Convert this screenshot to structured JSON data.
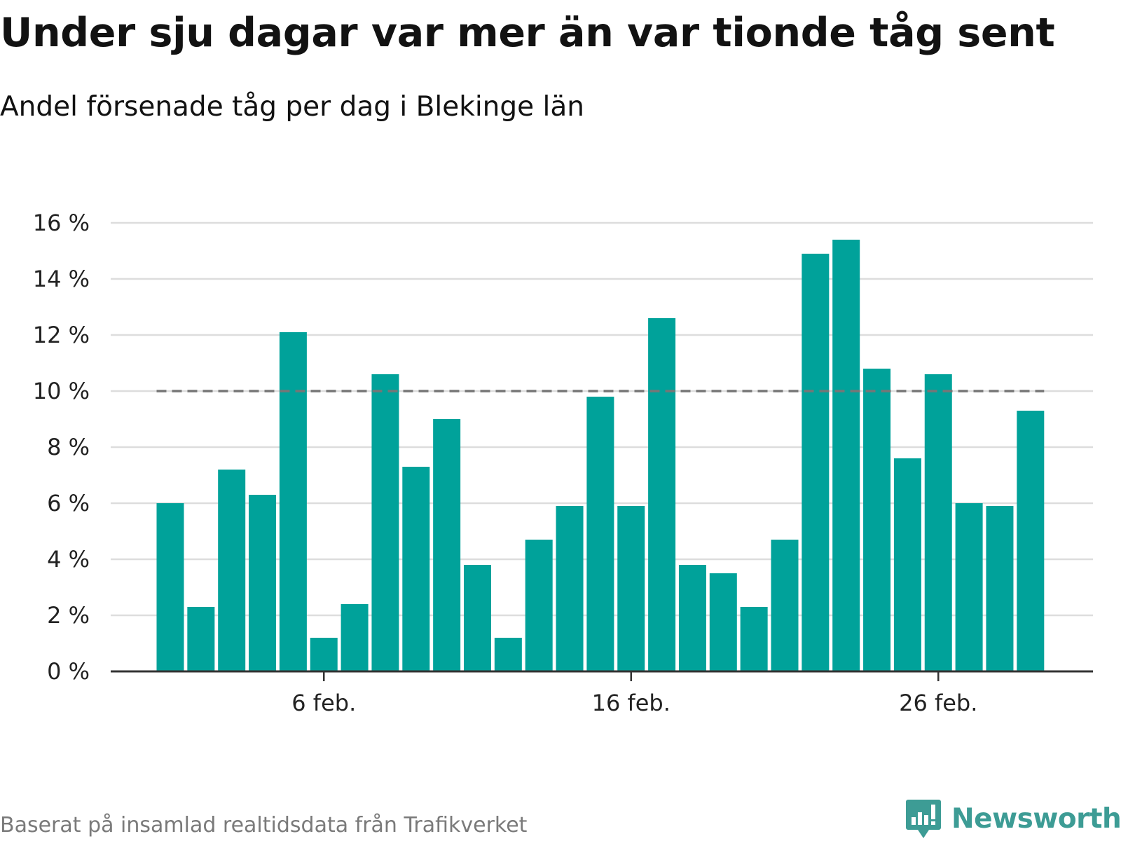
{
  "title": "Under sju dagar var mer än var tionde tåg sent",
  "subtitle": "Andel försenade tåg per dag i Blekinge län",
  "source": "Baserat på insamlad realtidsdata från Trafikverket",
  "brand": {
    "name": "Newsworthy",
    "icon": "newsworthy-logo-icon",
    "color": "#3d9c95"
  },
  "colors": {
    "bar": "#00a29a",
    "reference_line": "#767676",
    "grid": "#dddddd",
    "axis": "#333333"
  },
  "chart_data": {
    "type": "bar",
    "x": [
      "2024-02-01",
      "2024-02-02",
      "2024-02-03",
      "2024-02-04",
      "2024-02-05",
      "2024-02-06",
      "2024-02-07",
      "2024-02-08",
      "2024-02-09",
      "2024-02-10",
      "2024-02-11",
      "2024-02-12",
      "2024-02-13",
      "2024-02-14",
      "2024-02-15",
      "2024-02-16",
      "2024-02-17",
      "2024-02-18",
      "2024-02-19",
      "2024-02-20",
      "2024-02-21",
      "2024-02-22",
      "2024-02-23",
      "2024-02-24",
      "2024-02-25",
      "2024-02-26",
      "2024-02-27",
      "2024-02-28",
      "2024-02-29"
    ],
    "values": [
      6.0,
      2.3,
      7.2,
      6.3,
      12.1,
      1.2,
      2.4,
      10.6,
      7.3,
      9.0,
      3.8,
      1.2,
      4.7,
      5.9,
      9.8,
      5.9,
      12.6,
      3.8,
      3.5,
      2.3,
      4.7,
      14.9,
      15.4,
      10.8,
      7.6,
      10.6,
      6.0,
      5.9,
      9.3
    ],
    "reference_line": {
      "value": 10,
      "style": "dashed"
    },
    "ylim": [
      0,
      16
    ],
    "yticks": [
      0,
      2,
      4,
      6,
      8,
      10,
      12,
      14,
      16
    ],
    "ytick_labels": [
      "0 %",
      "2 %",
      "4 %",
      "6 %",
      "8 %",
      "10 %",
      "12 %",
      "14 %",
      "16 %"
    ],
    "xticks": [
      "2024-02-06",
      "2024-02-16",
      "2024-02-26"
    ],
    "xtick_labels": [
      "6 feb.",
      "16 feb.",
      "26 feb."
    ],
    "grid": true,
    "legend": false
  }
}
